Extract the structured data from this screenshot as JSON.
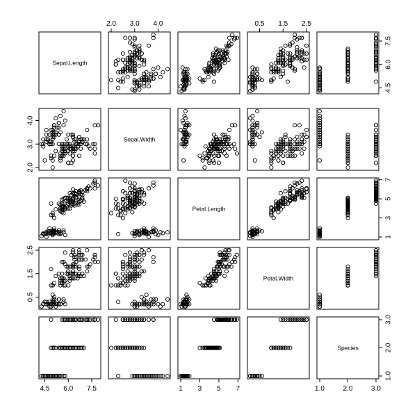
{
  "chart_data": {
    "type": "scatter",
    "kind": "scatterplot-matrix",
    "title": "",
    "grid": false,
    "legend": "none",
    "marker": "open-circle",
    "marker_color": "#000000",
    "panel_border_color": "#000000",
    "variables": [
      {
        "name": "Sepal.Length",
        "range": [
          4.3,
          7.9
        ],
        "ticks": [
          4.5,
          6.0,
          7.5
        ],
        "tick_labels": [
          "4.5",
          "6.0",
          "7.5"
        ]
      },
      {
        "name": "Sepal.Width",
        "range": [
          2.0,
          4.4
        ],
        "ticks": [
          2.0,
          3.0,
          4.0
        ],
        "tick_labels": [
          "2.0",
          "3.0",
          "4.0"
        ]
      },
      {
        "name": "Petal.Length",
        "range": [
          1.0,
          6.9
        ],
        "ticks": [
          1,
          3,
          5,
          7
        ],
        "tick_labels": [
          "1",
          "3",
          "5",
          "7"
        ]
      },
      {
        "name": "Petal.Width",
        "range": [
          0.1,
          2.5
        ],
        "ticks": [
          0.5,
          1.5,
          2.5
        ],
        "tick_labels": [
          "0.5",
          "1.5",
          "2.5"
        ]
      },
      {
        "name": "Species",
        "range": [
          1.0,
          3.0
        ],
        "ticks": [
          1.0,
          2.0,
          3.0
        ],
        "tick_labels": [
          "1.0",
          "2.0",
          "3.0"
        ]
      }
    ],
    "axes": {
      "top": [
        {
          "column": 1,
          "tick_labels": [
            "2.0",
            "3.0",
            "4.0"
          ]
        },
        {
          "column": 3,
          "tick_labels": [
            "0.5",
            "1.5",
            "2.5"
          ]
        }
      ],
      "bottom": [
        {
          "column": 0,
          "tick_labels": [
            "4.5",
            "6.0",
            "7.5"
          ]
        },
        {
          "column": 2,
          "tick_labels": [
            "1",
            "3",
            "5",
            "7"
          ]
        },
        {
          "column": 4,
          "tick_labels": [
            "1.0",
            "2.0",
            "3.0"
          ]
        }
      ],
      "left": [
        {
          "row": 1,
          "tick_labels": [
            "2.0",
            "3.0",
            "4.0"
          ]
        },
        {
          "row": 3,
          "tick_labels": [
            "0.5",
            "1.5",
            "2.5"
          ]
        }
      ],
      "right": [
        {
          "row": 0,
          "tick_labels": [
            "4.5",
            "6.0",
            "7.5"
          ]
        },
        {
          "row": 2,
          "tick_labels": [
            "1",
            "3",
            "5",
            "7"
          ]
        },
        {
          "row": 4,
          "tick_labels": [
            "1.0",
            "2.0",
            "3.0"
          ]
        }
      ]
    },
    "series_columns": [
      "Sepal.Length",
      "Sepal.Width",
      "Petal.Length",
      "Petal.Width",
      "Species"
    ],
    "observations": [
      [
        5.1,
        3.5,
        1.4,
        0.2,
        1
      ],
      [
        4.9,
        3.0,
        1.4,
        0.2,
        1
      ],
      [
        4.7,
        3.2,
        1.3,
        0.2,
        1
      ],
      [
        4.6,
        3.1,
        1.5,
        0.2,
        1
      ],
      [
        5.0,
        3.6,
        1.4,
        0.2,
        1
      ],
      [
        5.4,
        3.9,
        1.7,
        0.4,
        1
      ],
      [
        4.6,
        3.4,
        1.4,
        0.3,
        1
      ],
      [
        5.0,
        3.4,
        1.5,
        0.2,
        1
      ],
      [
        4.4,
        2.9,
        1.4,
        0.2,
        1
      ],
      [
        4.9,
        3.1,
        1.5,
        0.1,
        1
      ],
      [
        5.4,
        3.7,
        1.5,
        0.2,
        1
      ],
      [
        4.8,
        3.4,
        1.6,
        0.2,
        1
      ],
      [
        4.8,
        3.0,
        1.4,
        0.1,
        1
      ],
      [
        4.3,
        3.0,
        1.1,
        0.1,
        1
      ],
      [
        5.8,
        4.0,
        1.2,
        0.2,
        1
      ],
      [
        5.7,
        4.4,
        1.5,
        0.4,
        1
      ],
      [
        5.4,
        3.9,
        1.3,
        0.4,
        1
      ],
      [
        5.1,
        3.5,
        1.4,
        0.3,
        1
      ],
      [
        5.7,
        3.8,
        1.7,
        0.3,
        1
      ],
      [
        5.1,
        3.8,
        1.5,
        0.3,
        1
      ],
      [
        5.4,
        3.4,
        1.7,
        0.2,
        1
      ],
      [
        5.1,
        3.7,
        1.5,
        0.4,
        1
      ],
      [
        4.6,
        3.6,
        1.0,
        0.2,
        1
      ],
      [
        5.1,
        3.3,
        1.7,
        0.5,
        1
      ],
      [
        4.8,
        3.4,
        1.9,
        0.2,
        1
      ],
      [
        5.0,
        3.0,
        1.6,
        0.2,
        1
      ],
      [
        5.0,
        3.4,
        1.6,
        0.4,
        1
      ],
      [
        5.2,
        3.5,
        1.5,
        0.2,
        1
      ],
      [
        5.2,
        3.4,
        1.4,
        0.2,
        1
      ],
      [
        4.7,
        3.2,
        1.6,
        0.2,
        1
      ],
      [
        4.8,
        3.1,
        1.6,
        0.2,
        1
      ],
      [
        5.4,
        3.4,
        1.5,
        0.4,
        1
      ],
      [
        5.2,
        4.1,
        1.5,
        0.1,
        1
      ],
      [
        5.5,
        4.2,
        1.4,
        0.2,
        1
      ],
      [
        4.9,
        3.1,
        1.5,
        0.2,
        1
      ],
      [
        5.0,
        3.2,
        1.2,
        0.2,
        1
      ],
      [
        5.5,
        3.5,
        1.3,
        0.2,
        1
      ],
      [
        4.9,
        3.6,
        1.4,
        0.1,
        1
      ],
      [
        4.4,
        3.0,
        1.3,
        0.2,
        1
      ],
      [
        5.1,
        3.4,
        1.5,
        0.2,
        1
      ],
      [
        5.0,
        3.5,
        1.3,
        0.3,
        1
      ],
      [
        4.5,
        2.3,
        1.3,
        0.3,
        1
      ],
      [
        4.4,
        3.2,
        1.3,
        0.2,
        1
      ],
      [
        5.0,
        3.5,
        1.6,
        0.6,
        1
      ],
      [
        5.1,
        3.8,
        1.9,
        0.4,
        1
      ],
      [
        4.8,
        3.0,
        1.4,
        0.3,
        1
      ],
      [
        5.1,
        3.8,
        1.6,
        0.2,
        1
      ],
      [
        4.6,
        3.2,
        1.4,
        0.2,
        1
      ],
      [
        5.3,
        3.7,
        1.5,
        0.2,
        1
      ],
      [
        5.0,
        3.3,
        1.4,
        0.2,
        1
      ],
      [
        7.0,
        3.2,
        4.7,
        1.4,
        2
      ],
      [
        6.4,
        3.2,
        4.5,
        1.5,
        2
      ],
      [
        6.9,
        3.1,
        4.9,
        1.5,
        2
      ],
      [
        5.5,
        2.3,
        4.0,
        1.3,
        2
      ],
      [
        6.5,
        2.8,
        4.6,
        1.5,
        2
      ],
      [
        5.7,
        2.8,
        4.5,
        1.3,
        2
      ],
      [
        6.3,
        3.3,
        4.7,
        1.6,
        2
      ],
      [
        4.9,
        2.4,
        3.3,
        1.0,
        2
      ],
      [
        6.6,
        2.9,
        4.6,
        1.3,
        2
      ],
      [
        5.2,
        2.7,
        3.9,
        1.4,
        2
      ],
      [
        5.0,
        2.0,
        3.5,
        1.0,
        2
      ],
      [
        5.9,
        3.0,
        4.2,
        1.5,
        2
      ],
      [
        6.0,
        2.2,
        4.0,
        1.0,
        2
      ],
      [
        6.1,
        2.9,
        4.7,
        1.4,
        2
      ],
      [
        5.6,
        2.9,
        3.6,
        1.3,
        2
      ],
      [
        6.7,
        3.1,
        4.4,
        1.4,
        2
      ],
      [
        5.6,
        3.0,
        4.5,
        1.5,
        2
      ],
      [
        5.8,
        2.7,
        4.1,
        1.0,
        2
      ],
      [
        6.2,
        2.2,
        4.5,
        1.5,
        2
      ],
      [
        5.6,
        2.5,
        3.9,
        1.1,
        2
      ],
      [
        5.9,
        3.2,
        4.8,
        1.8,
        2
      ],
      [
        6.1,
        2.8,
        4.0,
        1.3,
        2
      ],
      [
        6.3,
        2.5,
        4.9,
        1.5,
        2
      ],
      [
        6.1,
        2.8,
        4.7,
        1.2,
        2
      ],
      [
        6.4,
        2.9,
        4.3,
        1.3,
        2
      ],
      [
        6.6,
        3.0,
        4.4,
        1.4,
        2
      ],
      [
        6.8,
        2.8,
        4.8,
        1.4,
        2
      ],
      [
        6.7,
        3.0,
        5.0,
        1.7,
        2
      ],
      [
        6.0,
        2.9,
        4.5,
        1.5,
        2
      ],
      [
        5.7,
        2.6,
        3.5,
        1.0,
        2
      ],
      [
        5.5,
        2.4,
        3.8,
        1.1,
        2
      ],
      [
        5.5,
        2.4,
        3.7,
        1.0,
        2
      ],
      [
        5.8,
        2.7,
        3.9,
        1.2,
        2
      ],
      [
        6.0,
        2.7,
        5.1,
        1.6,
        2
      ],
      [
        5.4,
        3.0,
        4.5,
        1.5,
        2
      ],
      [
        6.0,
        3.4,
        4.5,
        1.6,
        2
      ],
      [
        6.7,
        3.1,
        4.7,
        1.5,
        2
      ],
      [
        6.3,
        2.3,
        4.4,
        1.3,
        2
      ],
      [
        5.6,
        3.0,
        4.1,
        1.3,
        2
      ],
      [
        5.5,
        2.5,
        4.0,
        1.3,
        2
      ],
      [
        5.5,
        2.6,
        4.4,
        1.2,
        2
      ],
      [
        6.1,
        3.0,
        4.6,
        1.4,
        2
      ],
      [
        5.8,
        2.6,
        4.0,
        1.2,
        2
      ],
      [
        5.0,
        2.3,
        3.3,
        1.0,
        2
      ],
      [
        5.6,
        2.7,
        4.2,
        1.3,
        2
      ],
      [
        5.7,
        3.0,
        4.2,
        1.2,
        2
      ],
      [
        5.7,
        2.9,
        4.2,
        1.3,
        2
      ],
      [
        6.2,
        2.9,
        4.3,
        1.3,
        2
      ],
      [
        5.1,
        2.5,
        3.0,
        1.1,
        2
      ],
      [
        5.7,
        2.8,
        4.1,
        1.3,
        2
      ],
      [
        6.3,
        3.3,
        6.0,
        2.5,
        3
      ],
      [
        5.8,
        2.7,
        5.1,
        1.9,
        3
      ],
      [
        7.1,
        3.0,
        5.9,
        2.1,
        3
      ],
      [
        6.3,
        2.9,
        5.6,
        1.8,
        3
      ],
      [
        6.5,
        3.0,
        5.8,
        2.2,
        3
      ],
      [
        7.6,
        3.0,
        6.6,
        2.1,
        3
      ],
      [
        4.9,
        2.5,
        4.5,
        1.7,
        3
      ],
      [
        7.3,
        2.9,
        6.3,
        1.8,
        3
      ],
      [
        6.7,
        2.5,
        5.8,
        1.8,
        3
      ],
      [
        7.2,
        3.6,
        6.1,
        2.5,
        3
      ],
      [
        6.5,
        3.2,
        5.1,
        2.0,
        3
      ],
      [
        6.4,
        2.7,
        5.3,
        1.9,
        3
      ],
      [
        6.8,
        3.0,
        5.5,
        2.1,
        3
      ],
      [
        5.7,
        2.5,
        5.0,
        2.0,
        3
      ],
      [
        5.8,
        2.8,
        5.1,
        2.4,
        3
      ],
      [
        6.4,
        3.2,
        5.3,
        2.3,
        3
      ],
      [
        6.5,
        3.0,
        5.5,
        1.8,
        3
      ],
      [
        7.7,
        3.8,
        6.7,
        2.2,
        3
      ],
      [
        7.7,
        2.6,
        6.9,
        2.3,
        3
      ],
      [
        6.0,
        2.2,
        5.0,
        1.5,
        3
      ],
      [
        6.9,
        3.2,
        5.7,
        2.3,
        3
      ],
      [
        5.6,
        2.8,
        4.9,
        2.0,
        3
      ],
      [
        7.7,
        2.8,
        6.7,
        2.0,
        3
      ],
      [
        6.3,
        2.7,
        4.9,
        1.8,
        3
      ],
      [
        6.7,
        3.3,
        5.7,
        2.1,
        3
      ],
      [
        7.2,
        3.2,
        6.0,
        1.8,
        3
      ],
      [
        6.2,
        2.8,
        4.8,
        1.8,
        3
      ],
      [
        6.1,
        3.0,
        4.9,
        1.8,
        3
      ],
      [
        6.4,
        2.8,
        5.6,
        2.1,
        3
      ],
      [
        7.2,
        3.0,
        5.8,
        1.6,
        3
      ],
      [
        7.4,
        2.8,
        6.1,
        1.9,
        3
      ],
      [
        7.9,
        3.8,
        6.4,
        2.0,
        3
      ],
      [
        6.4,
        2.8,
        5.6,
        2.2,
        3
      ],
      [
        6.3,
        2.8,
        5.1,
        1.5,
        3
      ],
      [
        6.1,
        2.6,
        5.6,
        1.4,
        3
      ],
      [
        7.7,
        3.0,
        6.1,
        2.3,
        3
      ],
      [
        6.3,
        3.4,
        5.6,
        2.4,
        3
      ],
      [
        6.4,
        3.1,
        5.5,
        1.8,
        3
      ],
      [
        6.0,
        3.0,
        4.8,
        1.8,
        3
      ],
      [
        6.9,
        3.1,
        5.4,
        2.1,
        3
      ],
      [
        6.7,
        3.1,
        5.6,
        2.4,
        3
      ],
      [
        6.9,
        3.1,
        5.1,
        2.3,
        3
      ],
      [
        5.8,
        2.7,
        5.1,
        1.9,
        3
      ],
      [
        6.8,
        3.2,
        5.9,
        2.3,
        3
      ],
      [
        6.7,
        3.3,
        5.7,
        2.5,
        3
      ],
      [
        6.7,
        3.0,
        5.2,
        2.3,
        3
      ],
      [
        6.3,
        2.5,
        5.0,
        1.9,
        3
      ],
      [
        6.5,
        3.0,
        5.2,
        2.0,
        3
      ],
      [
        6.2,
        3.4,
        5.4,
        2.3,
        3
      ],
      [
        5.9,
        3.0,
        5.1,
        1.8,
        3
      ]
    ]
  }
}
